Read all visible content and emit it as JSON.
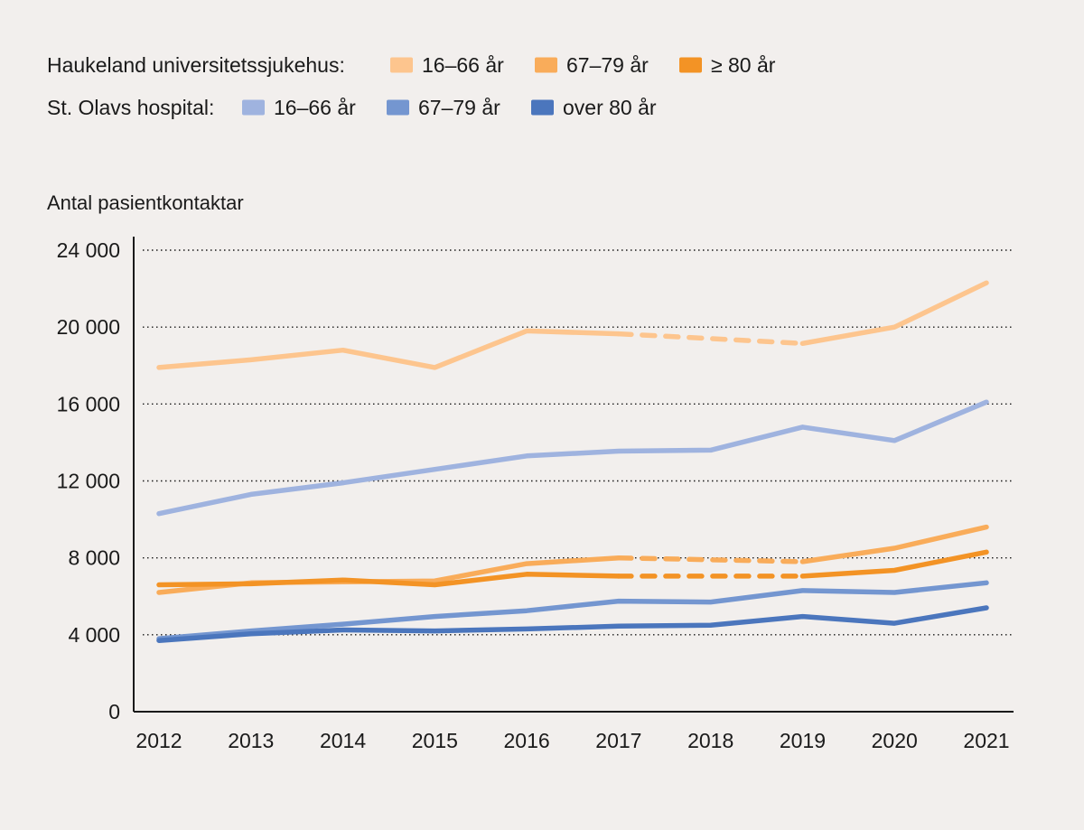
{
  "chart_data": {
    "type": "line",
    "ylabel": "Antal pasientkontaktar",
    "ylim": [
      0,
      24000
    ],
    "yticks": [
      0,
      4000,
      8000,
      12000,
      16000,
      20000,
      24000
    ],
    "ytick_labels": [
      "0",
      "4 000",
      "8 000",
      "12 000",
      "16 000",
      "20 000",
      "24 000"
    ],
    "x": [
      "2012",
      "2013",
      "2014",
      "2015",
      "2016",
      "2017",
      "2018",
      "2019",
      "2020",
      "2021"
    ],
    "grid": "horizontal dotted",
    "groups": [
      {
        "label": "Haukeland universitetssjukehus:",
        "series_names": [
          "16–66 år",
          "67–79 år",
          "≥ 80 år"
        ]
      },
      {
        "label": "St. Olavs hospital:",
        "series_names": [
          "16–66 år",
          "67–79 år",
          "over 80 år"
        ]
      }
    ],
    "series": [
      {
        "id": "h1",
        "group": "Haukeland universitetssjukehus:",
        "name": "16–66 år",
        "color": "#fdc58e",
        "values": [
          17900,
          18300,
          18800,
          17900,
          19800,
          19650,
          19400,
          19150,
          20000,
          22300
        ],
        "dashed_between": [
          "2017",
          "2019"
        ]
      },
      {
        "id": "h2",
        "group": "Haukeland universitetssjukehus:",
        "name": "67–79 år",
        "color": "#f9ac5a",
        "values": [
          6200,
          6700,
          6750,
          6800,
          7700,
          8000,
          7900,
          7800,
          8500,
          9600
        ],
        "dashed_between": [
          "2017",
          "2019"
        ]
      },
      {
        "id": "h3",
        "group": "Haukeland universitetssjukehus:",
        "name": "≥ 80 år",
        "color": "#f39325",
        "values": [
          6600,
          6650,
          6850,
          6600,
          7150,
          7050,
          7050,
          7050,
          7350,
          8300
        ],
        "dashed_between": [
          "2017",
          "2019"
        ]
      },
      {
        "id": "s1",
        "group": "St. Olavs hospital:",
        "name": "16–66 år",
        "color": "#9fb3df",
        "values": [
          10300,
          11300,
          11900,
          12600,
          13300,
          13550,
          13600,
          14800,
          14100,
          16100
        ]
      },
      {
        "id": "s2",
        "group": "St. Olavs hospital:",
        "name": "67–79 år",
        "color": "#7496d0",
        "values": [
          3800,
          4200,
          4550,
          4950,
          5250,
          5750,
          5700,
          6300,
          6200,
          6700
        ]
      },
      {
        "id": "s3",
        "group": "St. Olavs hospital:",
        "name": "over 80 år",
        "color": "#4b76bd",
        "values": [
          3700,
          4050,
          4250,
          4200,
          4300,
          4450,
          4500,
          4950,
          4600,
          5400
        ]
      }
    ]
  }
}
